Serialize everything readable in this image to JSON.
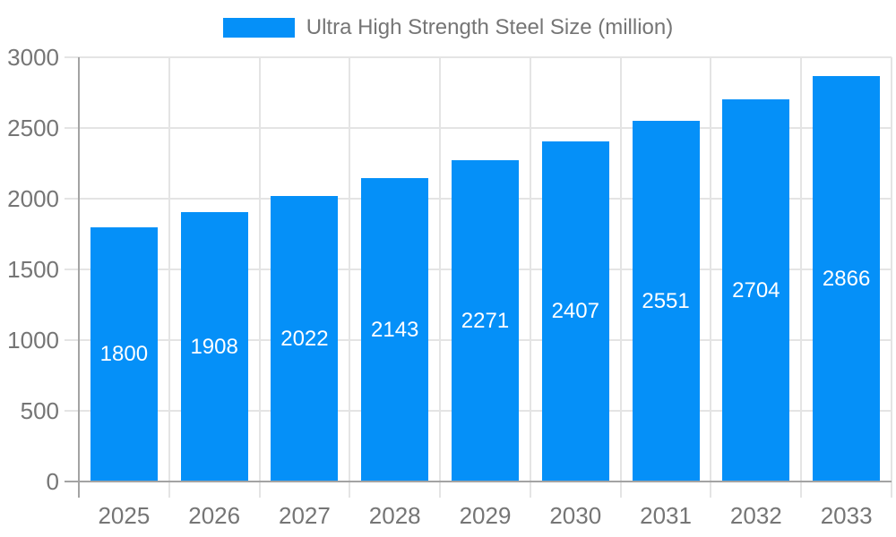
{
  "chart_data": {
    "type": "bar",
    "title": "Ultra High Strength Steel Size (million)",
    "legend": "Ultra High Strength Steel Size (million)",
    "legend_position": "top",
    "categories": [
      "2025",
      "2026",
      "2027",
      "2028",
      "2029",
      "2030",
      "2031",
      "2032",
      "2033"
    ],
    "values": [
      1800,
      1908,
      2022,
      2143,
      2271,
      2407,
      2551,
      2704,
      2866
    ],
    "xlabel": "",
    "ylabel": "",
    "ylim": [
      0,
      3000
    ],
    "yticks": [
      0,
      500,
      1000,
      1500,
      2000,
      2500,
      3000
    ],
    "grid": true,
    "colors": {
      "bar": "#0590f8",
      "bar_label": "#ffffff",
      "axis_text": "#757575",
      "legend_text": "#757575",
      "gridline": "#e4e4e4",
      "axis_line": "#a3a3a3"
    }
  }
}
